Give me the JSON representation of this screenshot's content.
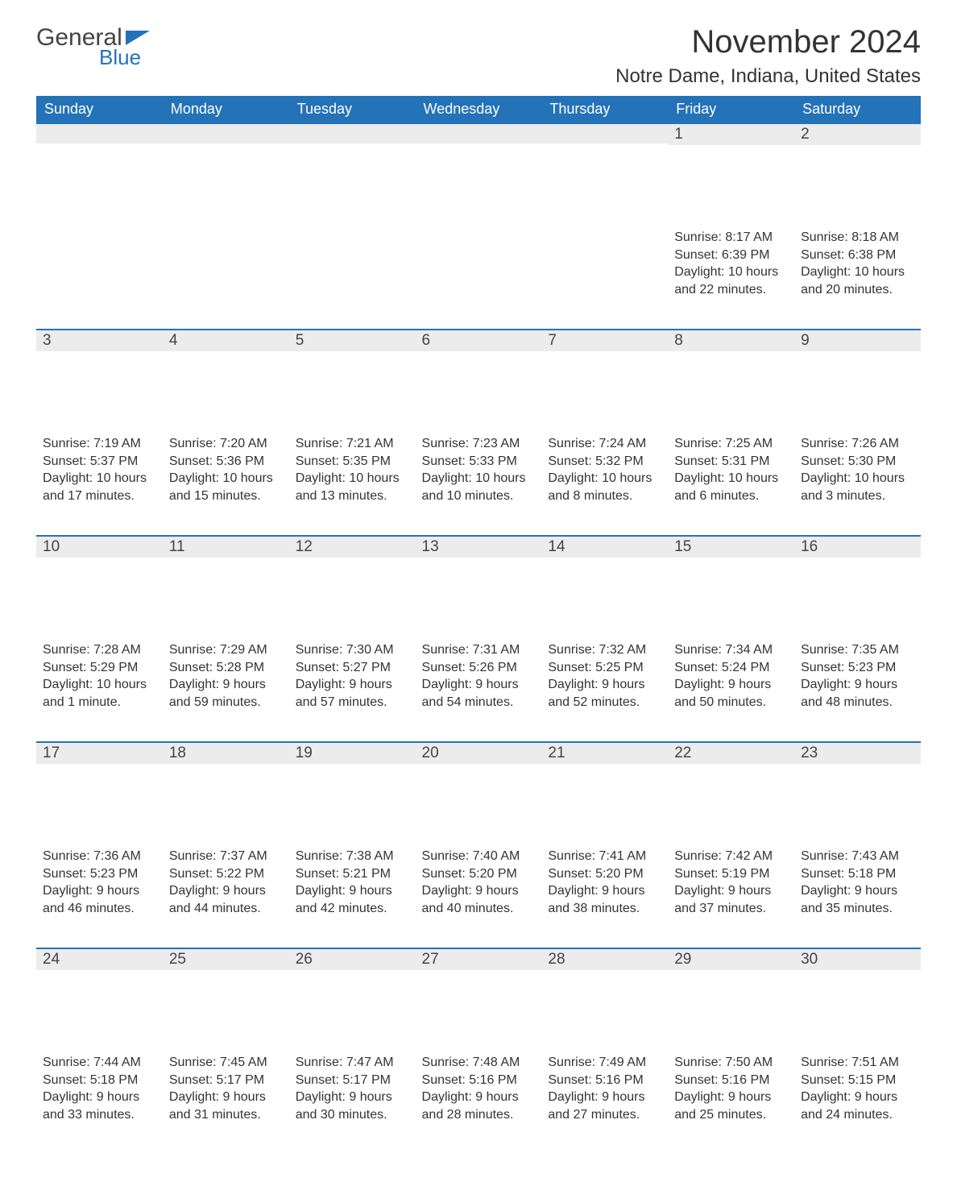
{
  "logo": {
    "text1": "General",
    "text2": "Blue"
  },
  "title": "November 2024",
  "location": "Notre Dame, Indiana, United States",
  "colors": {
    "header_bg": "#2472b8",
    "header_fg": "#ffffff",
    "daynum_bg": "#ececec",
    "border_top": "#2472b8",
    "text": "#333333"
  },
  "day_names": [
    "Sunday",
    "Monday",
    "Tuesday",
    "Wednesday",
    "Thursday",
    "Friday",
    "Saturday"
  ],
  "weeks": [
    [
      null,
      null,
      null,
      null,
      null,
      {
        "n": "1",
        "sunrise": "Sunrise: 8:17 AM",
        "sunset": "Sunset: 6:39 PM",
        "dl1": "Daylight: 10 hours",
        "dl2": "and 22 minutes."
      },
      {
        "n": "2",
        "sunrise": "Sunrise: 8:18 AM",
        "sunset": "Sunset: 6:38 PM",
        "dl1": "Daylight: 10 hours",
        "dl2": "and 20 minutes."
      }
    ],
    [
      {
        "n": "3",
        "sunrise": "Sunrise: 7:19 AM",
        "sunset": "Sunset: 5:37 PM",
        "dl1": "Daylight: 10 hours",
        "dl2": "and 17 minutes."
      },
      {
        "n": "4",
        "sunrise": "Sunrise: 7:20 AM",
        "sunset": "Sunset: 5:36 PM",
        "dl1": "Daylight: 10 hours",
        "dl2": "and 15 minutes."
      },
      {
        "n": "5",
        "sunrise": "Sunrise: 7:21 AM",
        "sunset": "Sunset: 5:35 PM",
        "dl1": "Daylight: 10 hours",
        "dl2": "and 13 minutes."
      },
      {
        "n": "6",
        "sunrise": "Sunrise: 7:23 AM",
        "sunset": "Sunset: 5:33 PM",
        "dl1": "Daylight: 10 hours",
        "dl2": "and 10 minutes."
      },
      {
        "n": "7",
        "sunrise": "Sunrise: 7:24 AM",
        "sunset": "Sunset: 5:32 PM",
        "dl1": "Daylight: 10 hours",
        "dl2": "and 8 minutes."
      },
      {
        "n": "8",
        "sunrise": "Sunrise: 7:25 AM",
        "sunset": "Sunset: 5:31 PM",
        "dl1": "Daylight: 10 hours",
        "dl2": "and 6 minutes."
      },
      {
        "n": "9",
        "sunrise": "Sunrise: 7:26 AM",
        "sunset": "Sunset: 5:30 PM",
        "dl1": "Daylight: 10 hours",
        "dl2": "and 3 minutes."
      }
    ],
    [
      {
        "n": "10",
        "sunrise": "Sunrise: 7:28 AM",
        "sunset": "Sunset: 5:29 PM",
        "dl1": "Daylight: 10 hours",
        "dl2": "and 1 minute."
      },
      {
        "n": "11",
        "sunrise": "Sunrise: 7:29 AM",
        "sunset": "Sunset: 5:28 PM",
        "dl1": "Daylight: 9 hours",
        "dl2": "and 59 minutes."
      },
      {
        "n": "12",
        "sunrise": "Sunrise: 7:30 AM",
        "sunset": "Sunset: 5:27 PM",
        "dl1": "Daylight: 9 hours",
        "dl2": "and 57 minutes."
      },
      {
        "n": "13",
        "sunrise": "Sunrise: 7:31 AM",
        "sunset": "Sunset: 5:26 PM",
        "dl1": "Daylight: 9 hours",
        "dl2": "and 54 minutes."
      },
      {
        "n": "14",
        "sunrise": "Sunrise: 7:32 AM",
        "sunset": "Sunset: 5:25 PM",
        "dl1": "Daylight: 9 hours",
        "dl2": "and 52 minutes."
      },
      {
        "n": "15",
        "sunrise": "Sunrise: 7:34 AM",
        "sunset": "Sunset: 5:24 PM",
        "dl1": "Daylight: 9 hours",
        "dl2": "and 50 minutes."
      },
      {
        "n": "16",
        "sunrise": "Sunrise: 7:35 AM",
        "sunset": "Sunset: 5:23 PM",
        "dl1": "Daylight: 9 hours",
        "dl2": "and 48 minutes."
      }
    ],
    [
      {
        "n": "17",
        "sunrise": "Sunrise: 7:36 AM",
        "sunset": "Sunset: 5:23 PM",
        "dl1": "Daylight: 9 hours",
        "dl2": "and 46 minutes."
      },
      {
        "n": "18",
        "sunrise": "Sunrise: 7:37 AM",
        "sunset": "Sunset: 5:22 PM",
        "dl1": "Daylight: 9 hours",
        "dl2": "and 44 minutes."
      },
      {
        "n": "19",
        "sunrise": "Sunrise: 7:38 AM",
        "sunset": "Sunset: 5:21 PM",
        "dl1": "Daylight: 9 hours",
        "dl2": "and 42 minutes."
      },
      {
        "n": "20",
        "sunrise": "Sunrise: 7:40 AM",
        "sunset": "Sunset: 5:20 PM",
        "dl1": "Daylight: 9 hours",
        "dl2": "and 40 minutes."
      },
      {
        "n": "21",
        "sunrise": "Sunrise: 7:41 AM",
        "sunset": "Sunset: 5:20 PM",
        "dl1": "Daylight: 9 hours",
        "dl2": "and 38 minutes."
      },
      {
        "n": "22",
        "sunrise": "Sunrise: 7:42 AM",
        "sunset": "Sunset: 5:19 PM",
        "dl1": "Daylight: 9 hours",
        "dl2": "and 37 minutes."
      },
      {
        "n": "23",
        "sunrise": "Sunrise: 7:43 AM",
        "sunset": "Sunset: 5:18 PM",
        "dl1": "Daylight: 9 hours",
        "dl2": "and 35 minutes."
      }
    ],
    [
      {
        "n": "24",
        "sunrise": "Sunrise: 7:44 AM",
        "sunset": "Sunset: 5:18 PM",
        "dl1": "Daylight: 9 hours",
        "dl2": "and 33 minutes."
      },
      {
        "n": "25",
        "sunrise": "Sunrise: 7:45 AM",
        "sunset": "Sunset: 5:17 PM",
        "dl1": "Daylight: 9 hours",
        "dl2": "and 31 minutes."
      },
      {
        "n": "26",
        "sunrise": "Sunrise: 7:47 AM",
        "sunset": "Sunset: 5:17 PM",
        "dl1": "Daylight: 9 hours",
        "dl2": "and 30 minutes."
      },
      {
        "n": "27",
        "sunrise": "Sunrise: 7:48 AM",
        "sunset": "Sunset: 5:16 PM",
        "dl1": "Daylight: 9 hours",
        "dl2": "and 28 minutes."
      },
      {
        "n": "28",
        "sunrise": "Sunrise: 7:49 AM",
        "sunset": "Sunset: 5:16 PM",
        "dl1": "Daylight: 9 hours",
        "dl2": "and 27 minutes."
      },
      {
        "n": "29",
        "sunrise": "Sunrise: 7:50 AM",
        "sunset": "Sunset: 5:16 PM",
        "dl1": "Daylight: 9 hours",
        "dl2": "and 25 minutes."
      },
      {
        "n": "30",
        "sunrise": "Sunrise: 7:51 AM",
        "sunset": "Sunset: 5:15 PM",
        "dl1": "Daylight: 9 hours",
        "dl2": "and 24 minutes."
      }
    ]
  ]
}
